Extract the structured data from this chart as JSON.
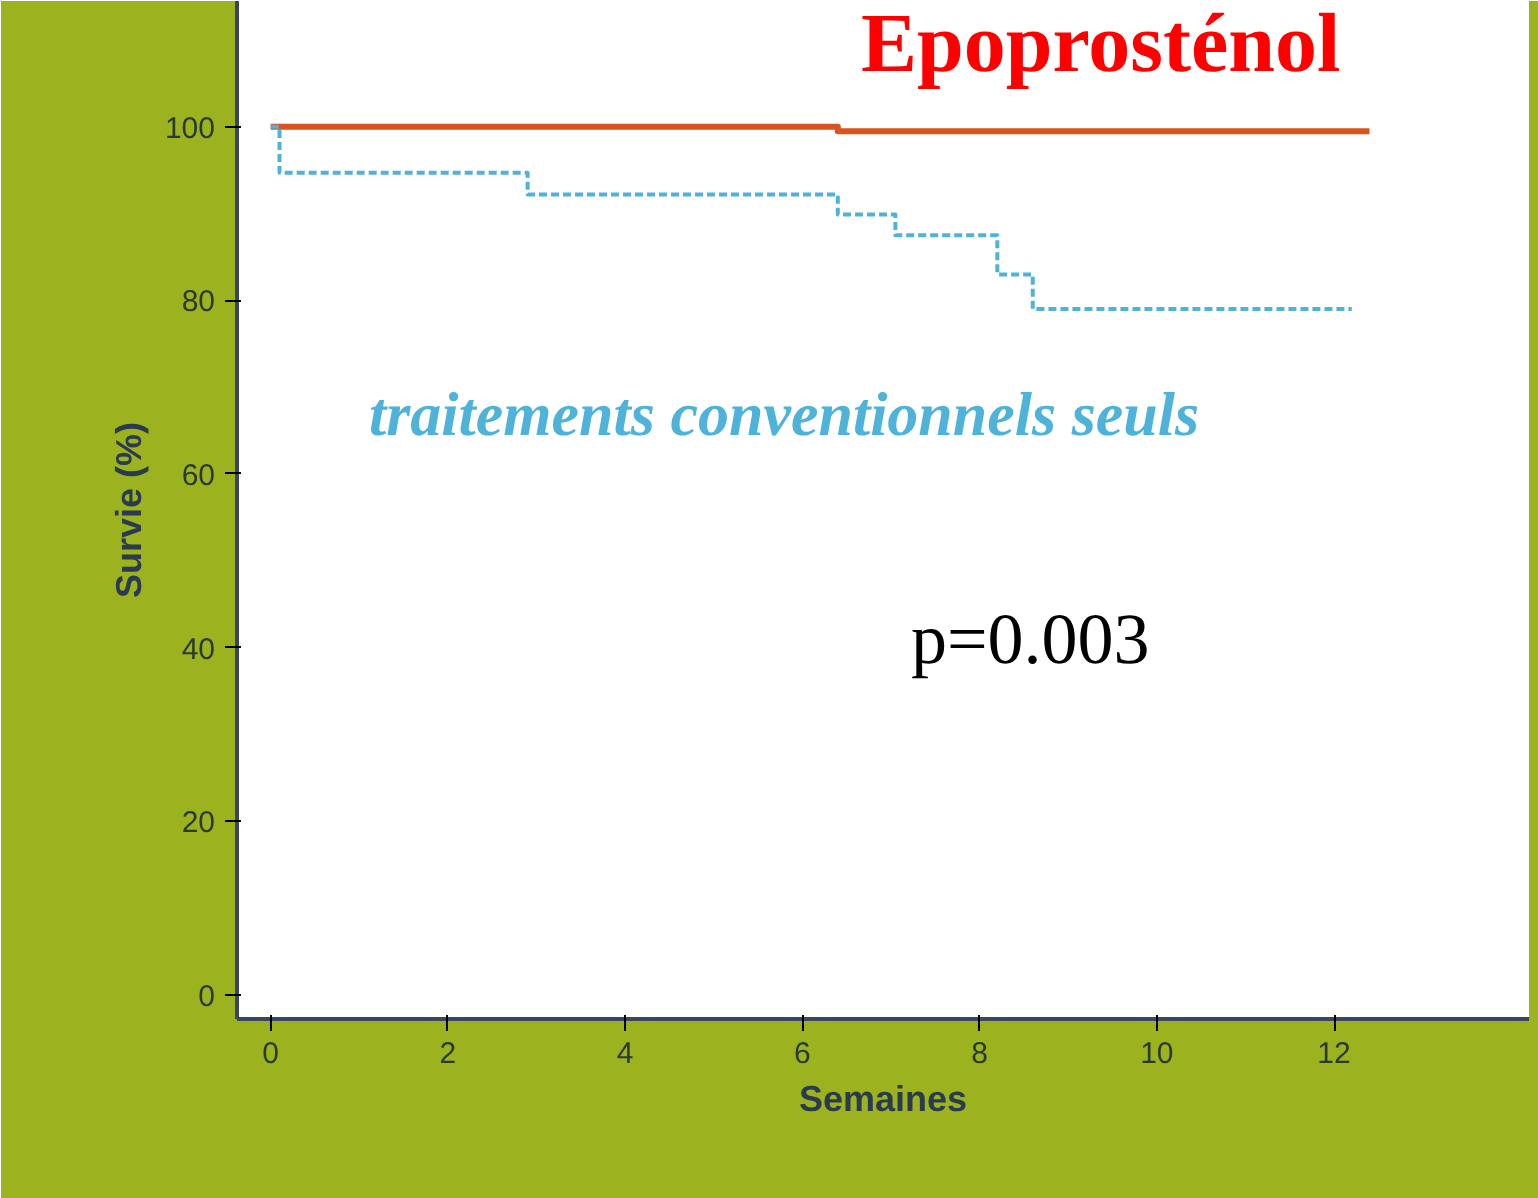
{
  "chart_data": {
    "type": "step",
    "xlabel": "Semaines",
    "ylabel": "Survie (%)",
    "xlim": [
      -0.38,
      14.2
    ],
    "ylim": [
      -2.8,
      114.5
    ],
    "xticks": [
      0,
      2,
      4,
      6,
      8,
      10,
      12
    ],
    "yticks": [
      0,
      20,
      40,
      60,
      80,
      100
    ],
    "series": [
      {
        "name": "Epoprosténol",
        "color": "#d9541e",
        "x": [
          0,
          6.4,
          12.4
        ],
        "values": [
          100,
          99.5,
          99.5
        ]
      },
      {
        "name": "traitements conventionnels seuls",
        "color": "#4fb3d9",
        "line_style": "dashed",
        "x": [
          0,
          0.1,
          2.9,
          6.4,
          7.05,
          8.2,
          8.6,
          12.2
        ],
        "values": [
          100,
          94.7,
          92.2,
          89.9,
          87.5,
          83,
          79,
          79
        ]
      }
    ],
    "annotations": [
      "p=0.003"
    ],
    "grid": false
  }
}
